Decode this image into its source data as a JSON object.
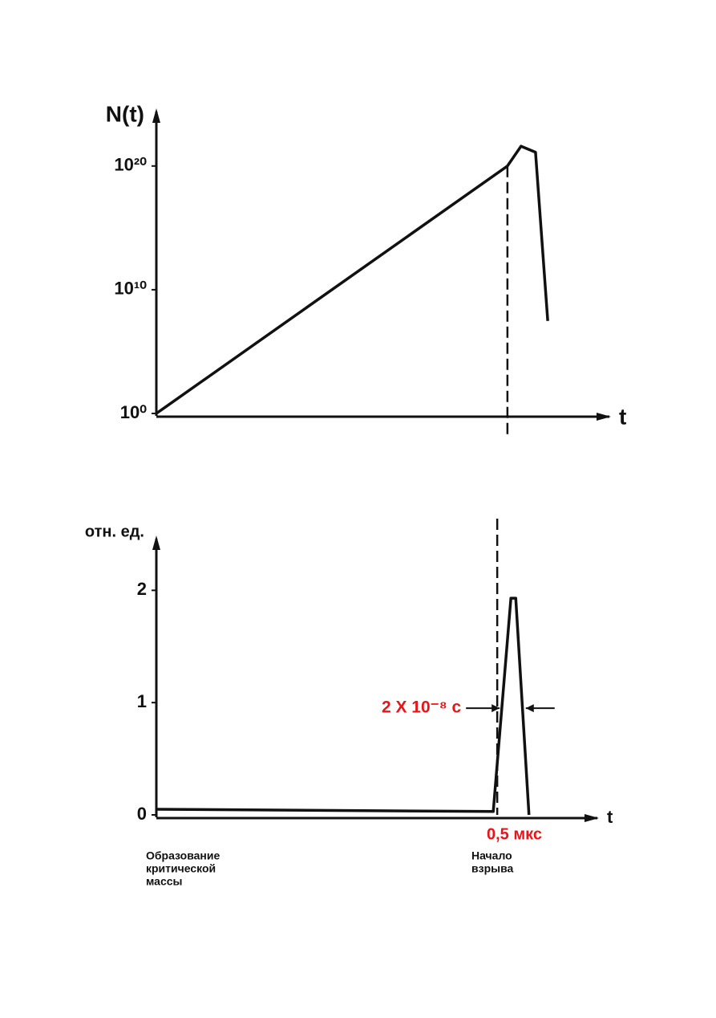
{
  "chart_data": [
    {
      "type": "line",
      "y_label": "N(t)",
      "x_label": "t",
      "log_y": true,
      "x": [
        0,
        77.5,
        80.5,
        83.7,
        86.4
      ],
      "values": [
        1,
        1e+20,
        4e+21,
        1.3e+21,
        30000000.0
      ],
      "color": "#111111",
      "xlim": [
        0,
        100
      ],
      "ylim": [
        1,
        2.5e+24
      ],
      "yticks": [
        {
          "value": 1,
          "label": "10⁰"
        },
        {
          "value": 10000000000.0,
          "label": "10¹⁰"
        },
        {
          "value": 1e+20,
          "label": "10²⁰"
        }
      ],
      "vline": 77.5
    },
    {
      "type": "line",
      "y_label": "отн. ед.",
      "x_label": "t",
      "log_y": false,
      "x": [
        0,
        76.4,
        80.4,
        81.5,
        84.5
      ],
      "values": [
        0.05,
        0.03,
        1.93,
        1.93,
        0
      ],
      "color": "#111111",
      "xlim": [
        0,
        100
      ],
      "ylim": [
        0,
        2.46
      ],
      "yticks": [
        0,
        1,
        2
      ],
      "vline": 77.3,
      "marker_level": 0.95,
      "width_label": "2 X 10⁻⁸ с",
      "duration_label": "0,5 мкс",
      "notes": [
        [
          "Образование",
          "критической",
          "массы"
        ],
        [
          "Начало",
          "взрыва"
        ]
      ]
    }
  ]
}
